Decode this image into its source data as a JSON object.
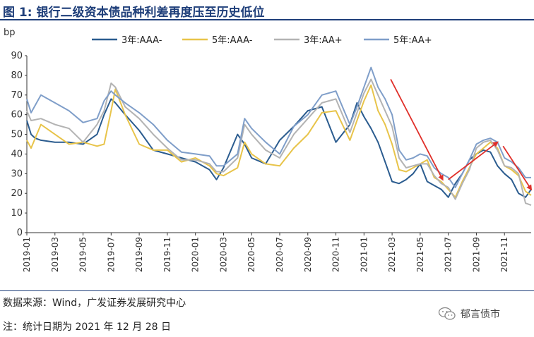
{
  "title": "图 1:  银行二级资本债品种利差再度压至历史低位",
  "source": "数据来源：Wind，广发证券发展研究中心",
  "note": "注：统计日期为 2021 年 12 月 28 日",
  "watermark": "郁言债市",
  "chart_data": {
    "type": "line",
    "ylabel": "bp",
    "ylim": [
      0,
      90
    ],
    "yticks": [
      0,
      10,
      20,
      30,
      40,
      50,
      60,
      70,
      80,
      90
    ],
    "x_range_months": [
      0,
      35.9
    ],
    "x_tick_labels": [
      "2019-01",
      "2019-03",
      "2019-05",
      "2019-07",
      "2019-09",
      "2019-11",
      "2020-01",
      "2020-03",
      "2020-05",
      "2020-07",
      "2020-09",
      "2020-11",
      "2021-01",
      "2021-03",
      "2021-05",
      "2021-07",
      "2021-09",
      "2021-11"
    ],
    "legend_position": "top",
    "series": [
      {
        "name": "3年:AAA-",
        "color": "#2b5c8f",
        "x": [
          0,
          0.3,
          0.6,
          1,
          2,
          3,
          4,
          5,
          5.5,
          6,
          6.3,
          7,
          8,
          9,
          10,
          11,
          12,
          13,
          13.5,
          14,
          15,
          15.5,
          16,
          17,
          18,
          19,
          20,
          21,
          22,
          23,
          23.5,
          24,
          24.5,
          25,
          25.5,
          26,
          26.5,
          27,
          27.5,
          28,
          28.5,
          29,
          29.5,
          30,
          30.5,
          31,
          31.5,
          32,
          32.5,
          33,
          33.5,
          34,
          34.5,
          35,
          35.5,
          35.9
        ],
        "values": [
          57,
          50,
          48,
          47,
          46,
          46,
          45,
          50,
          60,
          68,
          66,
          60,
          52,
          42,
          40,
          38,
          36,
          32,
          27,
          33,
          50,
          45,
          38,
          35,
          47,
          54,
          62,
          64,
          46,
          55,
          66,
          59,
          53,
          46,
          36,
          26,
          25,
          27,
          30,
          35,
          26,
          24,
          22,
          18,
          25,
          30,
          37,
          40,
          42,
          41,
          34,
          30,
          27,
          20,
          18,
          22
        ]
      },
      {
        "name": "5年:AAA-",
        "color": "#e8c44a",
        "x": [
          0,
          0.3,
          1,
          2,
          3,
          4,
          5,
          5.5,
          6,
          6.3,
          7,
          8,
          9,
          10,
          11,
          12,
          13,
          13.5,
          14,
          15,
          15.5,
          16,
          17,
          18,
          19,
          20,
          21,
          22,
          23,
          23.5,
          24,
          24.5,
          25,
          25.5,
          26,
          26.5,
          27,
          27.5,
          28,
          28.5,
          29,
          29.5,
          30,
          30.5,
          31,
          31.5,
          32,
          32.5,
          33,
          33.5,
          34,
          34.5,
          35,
          35.5,
          35.9
        ],
        "values": [
          47,
          43,
          55,
          50,
          45,
          46,
          44,
          45,
          62,
          73,
          60,
          45,
          42,
          42,
          36,
          38,
          34,
          30,
          29,
          33,
          46,
          40,
          35,
          34,
          43,
          50,
          61,
          62,
          47,
          57,
          67,
          75,
          62,
          55,
          45,
          32,
          31,
          33,
          35,
          37,
          28,
          26,
          22,
          18,
          26,
          33,
          40,
          43,
          46,
          43,
          34,
          32,
          29,
          21,
          19
        ]
      },
      {
        "name": "3年:AA+",
        "color": "#b3b3b3",
        "x": [
          0,
          0.3,
          1,
          2,
          3,
          4,
          5,
          5.5,
          6,
          6.3,
          7,
          8,
          9,
          10,
          11,
          12,
          13,
          13.5,
          14,
          15,
          15.5,
          16,
          17,
          18,
          19,
          20,
          21,
          22,
          23,
          23.5,
          24,
          24.5,
          25,
          25.5,
          26,
          26.5,
          27,
          27.5,
          28,
          28.5,
          29,
          29.5,
          30,
          30.5,
          31,
          31.5,
          32,
          32.5,
          33,
          33.5,
          34,
          34.5,
          35,
          35.5,
          35.9
        ],
        "values": [
          62,
          57,
          58,
          55,
          53,
          46,
          55,
          62,
          76,
          74,
          64,
          58,
          50,
          43,
          37,
          37,
          35,
          31,
          31,
          38,
          55,
          50,
          42,
          38,
          50,
          58,
          66,
          68,
          51,
          61,
          71,
          78,
          70,
          62,
          54,
          38,
          33,
          34,
          35,
          35,
          29,
          25,
          23,
          17,
          25,
          32,
          43,
          46,
          47,
          42,
          34,
          33,
          30,
          15,
          14
        ]
      },
      {
        "name": "5年:AA+",
        "color": "#7f9ec9",
        "x": [
          0,
          0.3,
          1,
          2,
          3,
          4,
          5,
          5.5,
          6,
          6.3,
          7,
          8,
          9,
          10,
          11,
          12,
          13,
          13.5,
          14,
          15,
          15.5,
          16,
          17,
          18,
          19,
          20,
          21,
          22,
          23,
          23.5,
          24,
          24.5,
          25,
          25.5,
          26,
          26.5,
          27,
          27.5,
          28,
          28.5,
          29,
          29.5,
          30,
          30.5,
          31,
          31.5,
          32,
          32.5,
          33,
          33.5,
          34,
          34.5,
          35,
          35.5,
          35.9
        ],
        "values": [
          68,
          61,
          70,
          66,
          62,
          56,
          58,
          67,
          72,
          70,
          66,
          61,
          55,
          47,
          41,
          40,
          39,
          34,
          34,
          40,
          58,
          53,
          46,
          40,
          54,
          60,
          70,
          72,
          55,
          64,
          74,
          84,
          74,
          68,
          60,
          42,
          37,
          38,
          40,
          39,
          33,
          30,
          28,
          23,
          30,
          37,
          45,
          47,
          48,
          46,
          38,
          36,
          33,
          28,
          28
        ]
      }
    ],
    "annotations": [
      {
        "type": "arrow",
        "from": [
          25.9,
          78
        ],
        "to": [
          29.6,
          27
        ],
        "color": "#e0302a"
      },
      {
        "type": "arrow",
        "from": [
          30.0,
          27
        ],
        "to": [
          33.5,
          46
        ],
        "color": "#e0302a"
      },
      {
        "type": "arrow",
        "from": [
          33.9,
          44
        ],
        "to": [
          35.9,
          22
        ],
        "color": "#e0302a"
      }
    ]
  }
}
